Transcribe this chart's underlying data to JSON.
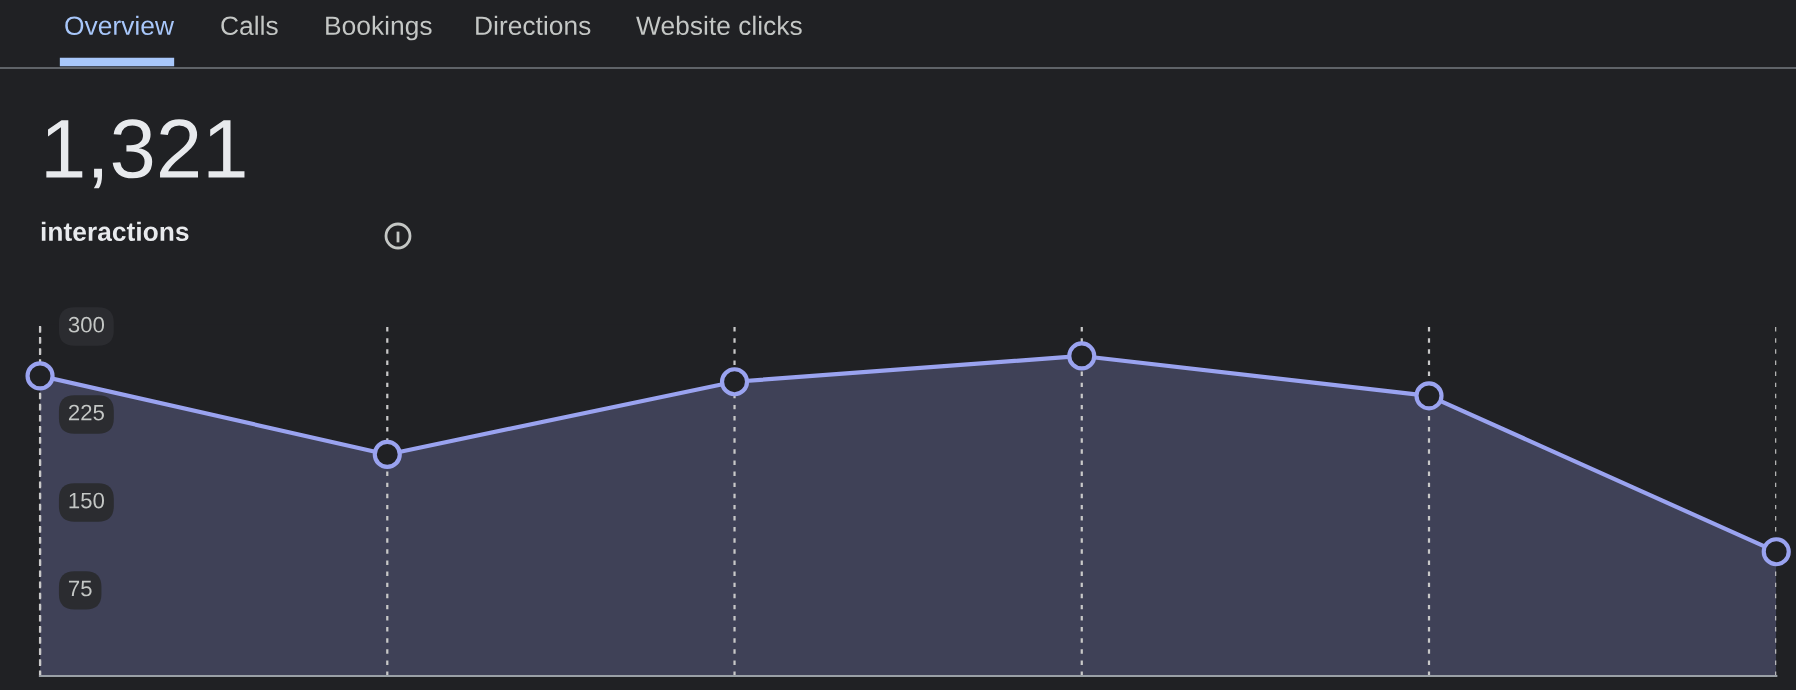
{
  "chart_data": {
    "type": "area",
    "title": "1,321",
    "subtitle": "interactions",
    "annotations": [
      "Overview",
      "Calls",
      "Bookings",
      "Directions",
      "Website clicks"
    ],
    "categories": [
      null,
      null,
      null,
      null,
      null,
      null
    ],
    "series": [
      {
        "color": "#9aa3f0",
        "values": [
          256,
          189,
          251,
          273,
          239,
          106
        ]
      }
    ],
    "ylim": [
      0,
      300
    ],
    "yticks": [
      75,
      150,
      225,
      300
    ],
    "grid": "x",
    "marker": "circle",
    "line_style": "solid",
    "tick_labels": "y"
  }
}
